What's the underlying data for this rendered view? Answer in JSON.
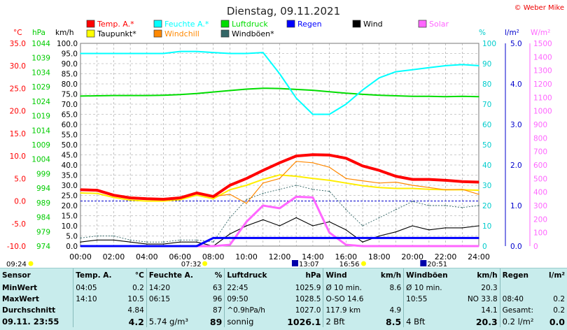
{
  "title": "Dienstag, 09.11.2021",
  "copyright": "© Weber Mike",
  "legend": [
    {
      "label": "Temp. A.*",
      "color": "#ff0000"
    },
    {
      "label": "Feuchte A.*",
      "color": "#00ffff"
    },
    {
      "label": "Luftdruck",
      "color": "#00dd00"
    },
    {
      "label": "Regen",
      "color": "#0000ff"
    },
    {
      "label": "Wind",
      "color": "#000000"
    },
    {
      "label": "Solar",
      "color": "#ff66ff"
    },
    {
      "label": "Taupunkt*",
      "color": "#ffff00"
    },
    {
      "label": "Windchill",
      "color": "#ff8800"
    },
    {
      "label": "Windböen*",
      "color": "#336666"
    }
  ],
  "axis_units": {
    "temp": "°C",
    "pressure": "hPa",
    "wind": "km/h",
    "humidity": "%",
    "rain": "l/m²",
    "solar": "W/m²"
  },
  "markers": {
    "left": "09:24",
    "sunrise": "07:32",
    "noon": "13:07",
    "sunset": "16:56",
    "right": "20:51"
  },
  "chart_data": {
    "type": "line",
    "title": "Dienstag, 09.11.2021",
    "x": [
      "00:00",
      "01:00",
      "02:00",
      "03:00",
      "04:00",
      "05:00",
      "06:00",
      "07:00",
      "08:00",
      "09:00",
      "10:00",
      "11:00",
      "12:00",
      "13:00",
      "14:00",
      "15:00",
      "16:00",
      "17:00",
      "18:00",
      "19:00",
      "20:00",
      "21:00",
      "22:00",
      "23:00",
      "24:00"
    ],
    "xlim": [
      "00:00",
      "24:00"
    ],
    "axes": {
      "temp_c": {
        "min": -10,
        "max": 35,
        "ticks": [
          "35.0",
          "30.0",
          "25.0",
          "20.0",
          "15.0",
          "10.0",
          "5.0",
          "0.0",
          "-5.0",
          "-10.0"
        ]
      },
      "pressure_hpa": {
        "min": 974,
        "max": 1044,
        "ticks": [
          "1044",
          "1039",
          "1034",
          "1029",
          "1024",
          "1019",
          "1014",
          "1009",
          "1004",
          "999",
          "994",
          "989",
          "984",
          "979",
          "974"
        ]
      },
      "wind_kmh": {
        "min": 0,
        "max": 100,
        "ticks": [
          "100.0",
          "95.0",
          "90.0",
          "85.0",
          "80.0",
          "75.0",
          "70.0",
          "65.0",
          "60.0",
          "55.0",
          "50.0",
          "45.0",
          "40.0",
          "35.0",
          "30.0",
          "25.0",
          "20.0",
          "15.0",
          "10.0",
          "5.0",
          "0.0"
        ]
      },
      "humidity_pct": {
        "min": 0,
        "max": 100,
        "ticks": [
          "100",
          "90",
          "80",
          "70",
          "60",
          "50",
          "40",
          "30",
          "20",
          "10",
          "0"
        ]
      },
      "rain_lm2": {
        "min": 0,
        "max": 5,
        "ticks": [
          "5.0",
          "4.0",
          "3.0",
          "2.0",
          "1.0",
          "0.0"
        ]
      },
      "solar_wm2": {
        "min": 0,
        "max": 1500,
        "ticks": [
          "1500",
          "1400",
          "1300",
          "1200",
          "1100",
          "1000",
          "900",
          "800",
          "700",
          "600",
          "500",
          "400",
          "300",
          "200",
          "100",
          "0"
        ]
      }
    },
    "series": [
      {
        "name": "Temp. A.*",
        "axis": "temp_c",
        "values": [
          2.5,
          2.4,
          1.3,
          0.7,
          0.5,
          0.4,
          0.7,
          1.8,
          1.0,
          3.5,
          5.0,
          6.8,
          8.5,
          10.0,
          10.3,
          10.2,
          9.5,
          7.8,
          6.8,
          5.5,
          4.8,
          4.8,
          4.6,
          4.3,
          4.2
        ]
      },
      {
        "name": "Taupunkt*",
        "axis": "temp_c",
        "values": [
          1.8,
          1.7,
          0.8,
          0.2,
          0.0,
          0.0,
          0.3,
          1.3,
          0.5,
          2.5,
          3.5,
          4.8,
          5.8,
          5.5,
          5.0,
          4.6,
          4.0,
          3.4,
          3.0,
          2.8,
          2.8,
          2.6,
          2.5,
          2.5,
          2.4
        ]
      },
      {
        "name": "Windchill",
        "axis": "temp_c",
        "values": [
          2.5,
          2.4,
          1.3,
          0.7,
          0.5,
          0.4,
          0.7,
          1.8,
          1.0,
          1.5,
          -0.5,
          4.0,
          5.0,
          8.8,
          8.5,
          7.5,
          5.0,
          4.5,
          4.0,
          4.2,
          3.5,
          3.0,
          2.5,
          2.6,
          1.5
        ]
      },
      {
        "name": "Luftdruck",
        "axis": "pressure_hpa",
        "values": [
          1025.8,
          1025.9,
          1026.0,
          1026.0,
          1026.0,
          1026.1,
          1026.3,
          1026.7,
          1027.2,
          1027.7,
          1028.2,
          1028.5,
          1028.4,
          1028.1,
          1027.8,
          1027.3,
          1026.8,
          1026.4,
          1026.1,
          1025.9,
          1025.7,
          1025.7,
          1025.6,
          1025.7,
          1025.6
        ]
      },
      {
        "name": "Feuchte A.*",
        "axis": "humidity_pct",
        "values": [
          95,
          95,
          95,
          95,
          95,
          95,
          96,
          96,
          95.5,
          95,
          95,
          95.5,
          85,
          73,
          65,
          65,
          70,
          77,
          83,
          86,
          87,
          88,
          89,
          89.5,
          89
        ]
      },
      {
        "name": "Wind",
        "axis": "wind_kmh",
        "values": [
          2,
          3,
          3,
          2,
          1,
          1,
          2,
          2,
          0,
          6,
          10,
          13,
          10,
          14,
          10,
          12,
          8,
          2,
          5,
          7,
          10,
          8,
          9,
          9,
          10
        ]
      },
      {
        "name": "Windböen*",
        "axis": "wind_kmh",
        "values": [
          4,
          5,
          5,
          3,
          2,
          2,
          3,
          3,
          2,
          14,
          23,
          26,
          28,
          30,
          28,
          27,
          18,
          10,
          14,
          18,
          22,
          20,
          20,
          19,
          20
        ]
      },
      {
        "name": "Solar",
        "axis": "solar_wm2",
        "values": [
          0,
          0,
          0,
          0,
          0,
          0,
          0,
          0,
          0,
          10,
          180,
          300,
          280,
          365,
          360,
          100,
          10,
          0,
          0,
          0,
          0,
          0,
          0,
          0,
          0
        ]
      },
      {
        "name": "Regen",
        "axis": "rain_lm2",
        "values": [
          0,
          0,
          0,
          0,
          0,
          0,
          0,
          0,
          0.2,
          0.2,
          0.2,
          0.2,
          0.2,
          0.2,
          0.2,
          0.2,
          0.2,
          0.2,
          0.2,
          0.2,
          0.2,
          0.2,
          0.2,
          0.2,
          0.2
        ]
      }
    ],
    "legend_position": "top",
    "grid": true
  },
  "stats": {
    "header": [
      "Sensor",
      "Temp. A.",
      "°C",
      "Feuchte A.",
      "%",
      "Luftdruck",
      "hPa",
      "Wind",
      "km/h",
      "Windböen",
      "km/h",
      "Regen",
      "l/m²"
    ],
    "rows": [
      [
        "MinWert",
        "04:05",
        "0.2",
        "14:20",
        "63",
        "22:45",
        "1025.9",
        "Ø 10 min.",
        "8.6",
        "Ø 10 min.",
        "20.3",
        "",
        ""
      ],
      [
        "MaxWert",
        "14:10",
        "10.5",
        "06:15",
        "96",
        "09:50",
        "1028.5",
        "O-SO 14.6",
        "",
        "10:55",
        "NO 33.8",
        "08:40",
        "0.2"
      ],
      [
        "Durchschnitt",
        "",
        "4.84",
        "",
        "87",
        "^0.9hPa/h",
        "1027.0",
        "117.9 km",
        "4.9",
        "",
        "14.1",
        "Gesamt:",
        "0.2"
      ],
      [
        "09.11. 23:55",
        "",
        "4.2",
        "5.74 g/m³",
        "89",
        "sonnig",
        "1026.1",
        "2 Bft",
        "8.5",
        "4 Bft",
        "20.3",
        "0.2 l/m²",
        "0.0"
      ]
    ]
  }
}
